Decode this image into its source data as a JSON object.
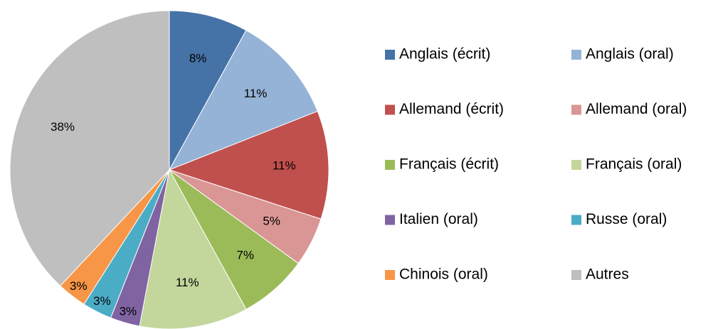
{
  "chart_data": {
    "type": "pie",
    "categories": [
      "Anglais (écrit)",
      "Anglais (oral)",
      "Allemand (écrit)",
      "Allemand (oral)",
      "Français (écrit)",
      "Français (oral)",
      "Italien (oral)",
      "Russe (oral)",
      "Chinois (oral)",
      "Autres"
    ],
    "values": [
      8,
      11,
      11,
      5,
      7,
      11,
      3,
      3,
      3,
      38
    ],
    "value_labels": [
      "8%",
      "11%",
      "11%",
      "5%",
      "7%",
      "11%",
      "3%",
      "3%",
      "3%",
      "38%"
    ],
    "colors": [
      "#4572a7",
      "#95b3d7",
      "#c0504d",
      "#d99694",
      "#9bbb59",
      "#c3d69b",
      "#8064a2",
      "#4bacc6",
      "#f79646",
      "#bfbfbf"
    ],
    "legend": "right"
  }
}
